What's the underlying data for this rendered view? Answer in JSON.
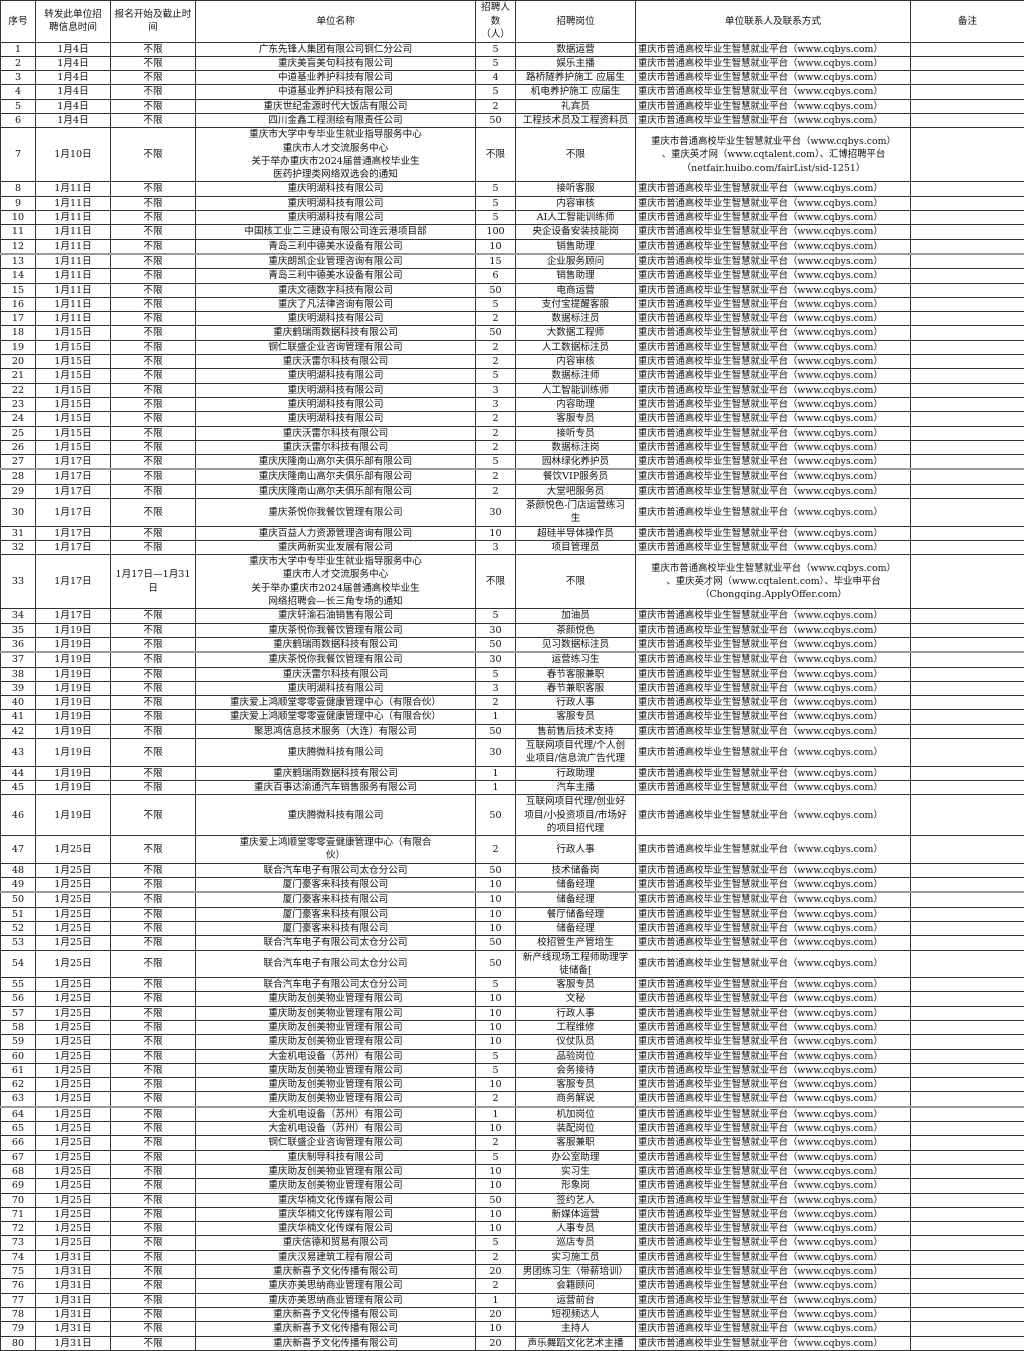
{
  "headers": [
    "序号",
    "转发此单位招\n聘信息时间",
    "报名开始及截止时间",
    "单位名称",
    "招聘人数\n（人）",
    "招聘岗位",
    "单位联系人及联系方式",
    "备注"
  ],
  "default_contact": "重庆市普通高校毕业生智慧就业平台（www.cqbys.com）",
  "rows": [
    [
      "1",
      "1月4日",
      "不限",
      "广东先锋人集团有限公司铜仁分公司",
      "5",
      "数据运营"
    ],
    [
      "2",
      "1月4日",
      "不限",
      "重庆美盲美句科技有限公司",
      "5",
      "娱乐主播"
    ],
    [
      "3",
      "1月4日",
      "不限",
      "中道基业养护科技有限公司",
      "4",
      "路桥隧养护施工 应届生"
    ],
    [
      "4",
      "1月4日",
      "不限",
      "中道基业养护科技有限公司",
      "5",
      "机电养护施工 应届生"
    ],
    [
      "5",
      "1月4日",
      "不限",
      "重庆世纪金源时代大饭店有限公司",
      "2",
      "礼宾员"
    ],
    [
      "6",
      "1月4日",
      "不限",
      "四川金鑫工程测绘有限责任公司",
      "50",
      "工程技术员及工程资料员"
    ],
    [
      "7",
      "1月10日",
      "不限",
      "重庆市大学中专毕业生就业指导服务中心\n重庆市人才交流服务中心\n关于举办重庆市2024届普通高校毕业生\n医药护理类网络双选会的通知",
      "不限",
      "不限",
      "重庆市普通高校毕业生智慧就业平台（www.cqbys.com）\n、重庆英才网（www.cqtalent.com）、汇博招聘平台\n（netfair.huibo.com/fairList/sid-1251）"
    ],
    [
      "8",
      "1月11日",
      "不限",
      "重庆明湖科技有限公司",
      "5",
      "接听客服"
    ],
    [
      "9",
      "1月11日",
      "不限",
      "重庆明湖科技有限公司",
      "5",
      "内容审核"
    ],
    [
      "10",
      "1月11日",
      "不限",
      "重庆明湖科技有限公司",
      "5",
      "AI人工智能训练师"
    ],
    [
      "11",
      "1月11日",
      "不限",
      "中国核工业二三建设有限公司连云港项目部",
      "100",
      "央企设备安装技能岗"
    ],
    [
      "12",
      "1月11日",
      "不限",
      "青岛三利中德美水设备有限公司",
      "10",
      "销售助理"
    ],
    [
      "13",
      "1月11日",
      "不限",
      "重庆朗凯企业管理咨询有限公司",
      "15",
      "企业服务顾问"
    ],
    [
      "14",
      "1月11日",
      "不限",
      "青岛三利中德美水设备有限公司",
      "6",
      "销售助理"
    ],
    [
      "15",
      "1月11日",
      "不限",
      "重庆文德数字科技有限公司",
      "50",
      "电商运营"
    ],
    [
      "16",
      "1月11日",
      "不限",
      "重庆了凡法律咨询有限公司",
      "5",
      "支付宝提醒客服"
    ],
    [
      "17",
      "1月11日",
      "不限",
      "重庆明湖科技有限公司",
      "2",
      "数据标注员"
    ],
    [
      "18",
      "1月15日",
      "不限",
      "重庆鹤瑞雨数据科技有限公司",
      "50",
      "大数据工程师"
    ],
    [
      "19",
      "1月15日",
      "不限",
      "铜仁联盛企业咨询管理有限公司",
      "2",
      "人工数据标注员"
    ],
    [
      "20",
      "1月15日",
      "不限",
      "重庆沃雷尔科技有限公司",
      "2",
      "内容审核"
    ],
    [
      "21",
      "1月15日",
      "不限",
      "重庆明湖科技有限公司",
      "5",
      "数据标注师"
    ],
    [
      "22",
      "1月15日",
      "不限",
      "重庆明湖科技有限公司",
      "3",
      "人工智能训练师"
    ],
    [
      "23",
      "1月15日",
      "不限",
      "重庆明湖科技有限公司",
      "3",
      "内容助理"
    ],
    [
      "24",
      "1月15日",
      "不限",
      "重庆明湖科技有限公司",
      "2",
      "客服专员"
    ],
    [
      "25",
      "1月15日",
      "不限",
      "重庆沃雷尔科技有限公司",
      "2",
      "接听专员"
    ],
    [
      "26",
      "1月15日",
      "不限",
      "重庆沃雷尔科技有限公司",
      "2",
      "数据标注岗"
    ],
    [
      "27",
      "1月17日",
      "不限",
      "重庆庆隆南山高尔夫俱乐部有限公司",
      "5",
      "园林绿化养护员"
    ],
    [
      "28",
      "1月17日",
      "不限",
      "重庆庆隆南山高尔夫俱乐部有限公司",
      "2",
      "餐饮VIP服务员"
    ],
    [
      "29",
      "1月17日",
      "不限",
      "重庆庆隆南山高尔夫俱乐部有限公司",
      "2",
      "大堂吧服务员"
    ],
    [
      "30",
      "1月17日",
      "不限",
      "重庆茶悦你我餐饮管理有限公司",
      "30",
      "茶颜悦色-门店运营练习\n生"
    ],
    [
      "31",
      "1月17日",
      "不限",
      "重庆百益人力资源管理咨询有限公司",
      "10",
      "超硅半导体操作员"
    ],
    [
      "32",
      "1月17日",
      "不限",
      "重庆两新实业发展有限公司",
      "3",
      "项目管理员"
    ],
    [
      "33",
      "1月17日",
      "1月17日—1月31日",
      "重庆市大学中专毕业生就业指导服务中心\n重庆市人才交流服务中心\n关于举办重庆市2024届普通高校毕业生\n网络招聘会—长三角专场的通知",
      "不限",
      "不限",
      "重庆市普通高校毕业生智慧就业平台（www.cqbys.com）\n、重庆英才网（www.cqtalent.com）、毕业申平台\n（Chongqing.ApplyOffer.com）"
    ],
    [
      "34",
      "1月17日",
      "不限",
      "重庆轩渝石油销售有限公司",
      "5",
      "加油员"
    ],
    [
      "35",
      "1月19日",
      "不限",
      "重庆茶悦你我餐饮管理有限公司",
      "30",
      "茶颜悦色"
    ],
    [
      "36",
      "1月19日",
      "不限",
      "重庆鹤瑞雨数据科技有限公司",
      "50",
      "见习数据标注员"
    ],
    [
      "37",
      "1月19日",
      "不限",
      "重庆茶悦你我餐饮管理有限公司",
      "30",
      "运营练习生"
    ],
    [
      "38",
      "1月19日",
      "不限",
      "重庆沃雷尔科技有限公司",
      "5",
      "春节客服兼职"
    ],
    [
      "39",
      "1月19日",
      "不限",
      "重庆明湖科技有限公司",
      "3",
      "春节兼职客服"
    ],
    [
      "40",
      "1月19日",
      "不限",
      "重庆爱上鸿顺堂零零壹健康管理中心（有限合伙）",
      "2",
      "行政人事"
    ],
    [
      "41",
      "1月19日",
      "不限",
      "重庆爱上鸿顺堂零零壹健康管理中心（有限合伙）",
      "1",
      "客服专员"
    ],
    [
      "42",
      "1月19日",
      "不限",
      "聚思鸿信息技术服务（大连）有限公司",
      "50",
      "售前售后技术支持"
    ],
    [
      "43",
      "1月19日",
      "不限",
      "重庆腾微科技有限公司",
      "30",
      "互联网项目代理/个人创\n业项目/信息流广告代理"
    ],
    [
      "44",
      "1月19日",
      "不限",
      "重庆鹤瑞雨数据科技有限公司",
      "1",
      "行政助理"
    ],
    [
      "45",
      "1月19日",
      "不限",
      "重庆百事达渝通汽车销售服务有限公司",
      "1",
      "汽车主播"
    ],
    [
      "46",
      "1月19日",
      "不限",
      "重庆腾微科技有限公司",
      "50",
      "互联网项目代理/创业好\n项目/小投资项目/市场好\n的项目招代理"
    ],
    [
      "47",
      "1月25日",
      "不限",
      "重庆爱上鸿顺堂零零壹健康管理中心（有限合\n伙）",
      "2",
      "行政人事"
    ],
    [
      "48",
      "1月25日",
      "不限",
      "联合汽车电子有限公司太仓分公司",
      "50",
      "技术储备岗"
    ],
    [
      "49",
      "1月25日",
      "不限",
      "厦门豪客来科技有限公司",
      "10",
      "储备经理"
    ],
    [
      "50",
      "1月25日",
      "不限",
      "厦门豪客来科技有限公司",
      "10",
      "储备经理"
    ],
    [
      "51",
      "1月25日",
      "不限",
      "厦门豪客来科技有限公司",
      "10",
      "餐厅储备经理"
    ],
    [
      "52",
      "1月25日",
      "不限",
      "厦门豪客来科技有限公司",
      "10",
      "储备经理"
    ],
    [
      "53",
      "1月25日",
      "不限",
      "联合汽车电子有限公司太仓分公司",
      "50",
      "校招管生产管培生"
    ],
    [
      "54",
      "1月25日",
      "不限",
      "联合汽车电子有限公司太仓分公司",
      "50",
      "新产线现场工程师助理学\n徒储备["
    ],
    [
      "55",
      "1月25日",
      "不限",
      "联合汽车电子有限公司太仓分公司",
      "5",
      "客服专员"
    ],
    [
      "56",
      "1月25日",
      "不限",
      "重庆助友创美物业管理有限公司",
      "10",
      "文秘"
    ],
    [
      "57",
      "1月25日",
      "不限",
      "重庆助友创美物业管理有限公司",
      "10",
      "行政人事"
    ],
    [
      "58",
      "1月25日",
      "不限",
      "重庆助友创美物业管理有限公司",
      "10",
      "工程维修"
    ],
    [
      "59",
      "1月25日",
      "不限",
      "重庆助友创美物业管理有限公司",
      "10",
      "仪仗队员"
    ],
    [
      "60",
      "1月25日",
      "不限",
      "大金机电设备（苏州）有限公司",
      "5",
      "品验岗位"
    ],
    [
      "61",
      "1月25日",
      "不限",
      "重庆助友创美物业管理有限公司",
      "5",
      "会务接待"
    ],
    [
      "62",
      "1月25日",
      "不限",
      "重庆助友创美物业管理有限公司",
      "10",
      "客服专员"
    ],
    [
      "63",
      "1月25日",
      "不限",
      "重庆助友创美物业管理有限公司",
      "2",
      "商务解说"
    ],
    [
      "64",
      "1月25日",
      "不限",
      "大金机电设备（苏州）有限公司",
      "1",
      "机加岗位"
    ],
    [
      "65",
      "1月25日",
      "不限",
      "大金机电设备（苏州）有限公司",
      "10",
      "装配岗位"
    ],
    [
      "66",
      "1月25日",
      "不限",
      "铜仁联盛企业咨询管理有限公司",
      "2",
      "客服兼职"
    ],
    [
      "67",
      "1月25日",
      "不限",
      "重庆制导科技有限公司",
      "5",
      "办公室助理"
    ],
    [
      "68",
      "1月25日",
      "不限",
      "重庆助友创美物业管理有限公司",
      "10",
      "实习生"
    ],
    [
      "69",
      "1月25日",
      "不限",
      "重庆助友创美物业管理有限公司",
      "10",
      "形象岗"
    ],
    [
      "70",
      "1月25日",
      "不限",
      "重庆华楠文化传媒有限公司",
      "50",
      "签约艺人"
    ],
    [
      "71",
      "1月25日",
      "不限",
      "重庆华楠文化传媒有限公司",
      "10",
      "新媒体运营"
    ],
    [
      "72",
      "1月25日",
      "不限",
      "重庆华楠文化传媒有限公司",
      "10",
      "人事专员"
    ],
    [
      "73",
      "1月25日",
      "不限",
      "重庆信德和贸易有限公司",
      "5",
      "巡店专员"
    ],
    [
      "74",
      "1月31日",
      "不限",
      "重庆汉易建筑工程有限公司",
      "2",
      "实习施工员"
    ],
    [
      "75",
      "1月31日",
      "不限",
      "重庆新喜予文化传播有限公司",
      "20",
      "男团练习生（带薪培训）"
    ],
    [
      "76",
      "1月31日",
      "不限",
      "重庆亦美思纳商业管理有限公司",
      "2",
      "会籍顾问"
    ],
    [
      "77",
      "1月31日",
      "不限",
      "重庆亦美思纳商业管理有限公司",
      "1",
      "运营前台"
    ],
    [
      "78",
      "1月31日",
      "不限",
      "重庆新喜予文化传播有限公司",
      "20",
      "短视频达人"
    ],
    [
      "79",
      "1月31日",
      "不限",
      "重庆新喜予文化传播有限公司",
      "10",
      "主持人"
    ],
    [
      "80",
      "1月31日",
      "不限",
      "重庆新喜予文化传播有限公司",
      "20",
      "声乐舞蹈文化艺术主播"
    ]
  ]
}
